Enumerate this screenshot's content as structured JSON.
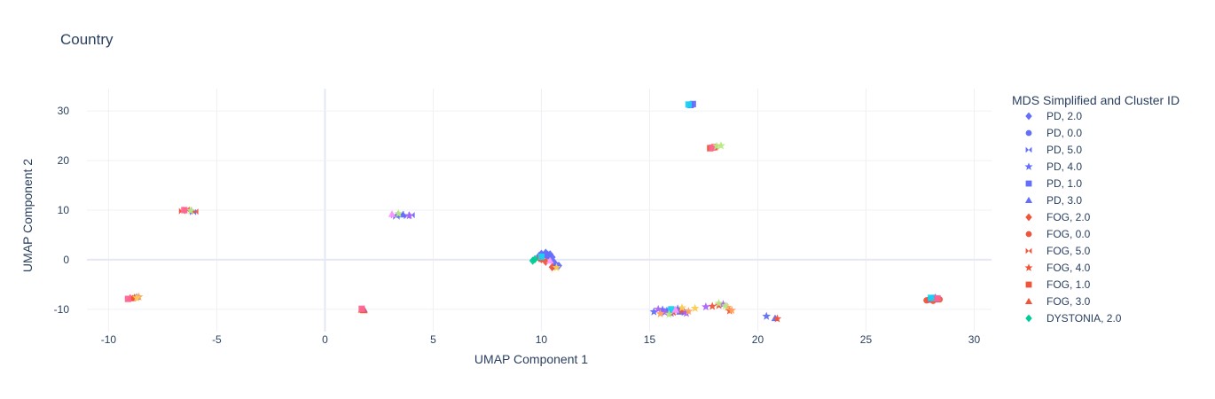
{
  "chart_data": {
    "type": "scatter",
    "title": "Country",
    "xlabel": "UMAP Component 1",
    "ylabel": "UMAP Component 2",
    "xlim": [
      -11,
      30.8
    ],
    "ylim": [
      -14.5,
      34.5
    ],
    "xticks": [
      -10,
      -5,
      0,
      5,
      10,
      15,
      20,
      25,
      30
    ],
    "yticks": [
      -10,
      0,
      10,
      20,
      30
    ],
    "grid": true,
    "legend_title": "MDS Simplified and Cluster ID",
    "legend_position": "right",
    "series": [
      {
        "name": "PD, 2.0",
        "color": "#636efa",
        "symbol": "diamond",
        "points": [
          [
            10.0,
            1.2
          ],
          [
            10.3,
            1.0
          ],
          [
            10.5,
            0.5
          ],
          [
            9.9,
            0.8
          ],
          [
            10.2,
            1.4
          ],
          [
            10.6,
            -0.6
          ],
          [
            10.8,
            -1.2
          ],
          [
            10.4,
            1.1
          ]
        ]
      },
      {
        "name": "PD, 0.0",
        "color": "#636efa",
        "symbol": "circle",
        "points": [
          [
            28.1,
            -7.7
          ],
          [
            28.2,
            -7.9
          ],
          [
            28.3,
            -8.0
          ],
          [
            27.9,
            -8.1
          ],
          [
            28.0,
            -7.8
          ],
          [
            10.1,
            1.0
          ],
          [
            10.3,
            0.7
          ]
        ]
      },
      {
        "name": "PD, 5.0",
        "color": "#636efa",
        "symbol": "bowtie",
        "points": [
          [
            3.2,
            9.0
          ],
          [
            3.5,
            9.2
          ],
          [
            3.8,
            8.8
          ],
          [
            4.0,
            9.0
          ],
          [
            3.3,
            8.7
          ],
          [
            -6.1,
            9.6
          ],
          [
            -6.3,
            10.0
          ]
        ]
      },
      {
        "name": "PD, 4.0",
        "color": "#636efa",
        "symbol": "star",
        "points": [
          [
            15.2,
            -10.5
          ],
          [
            15.6,
            -10.1
          ],
          [
            16.0,
            -10.8
          ],
          [
            16.3,
            -9.9
          ],
          [
            16.6,
            -10.6
          ],
          [
            20.4,
            -11.4
          ],
          [
            15.8,
            -10.3
          ]
        ]
      },
      {
        "name": "PD, 1.0",
        "color": "#636efa",
        "symbol": "square",
        "points": [
          [
            16.9,
            31.2
          ],
          [
            17.0,
            31.4
          ]
        ]
      },
      {
        "name": "PD, 3.0",
        "color": "#636efa",
        "symbol": "triangle-up",
        "points": [
          [
            1.8,
            -10.0
          ],
          [
            -8.7,
            -7.5
          ],
          [
            20.8,
            -11.8
          ],
          [
            28.2,
            -7.6
          ],
          [
            15.9,
            -10.2
          ],
          [
            16.4,
            -10.5
          ],
          [
            3.6,
            9.1
          ],
          [
            10.6,
            -1.4
          ],
          [
            10.2,
            0.9
          ]
        ]
      },
      {
        "name": "FOG, 2.0",
        "color": "#EF553B",
        "symbol": "diamond",
        "points": [
          [
            9.9,
            0.3
          ],
          [
            10.2,
            -0.4
          ],
          [
            10.5,
            -1.5
          ],
          [
            10.0,
            0.1
          ]
        ]
      },
      {
        "name": "FOG, 0.0",
        "color": "#EF553B",
        "symbol": "circle",
        "points": [
          [
            28.4,
            -8.0
          ],
          [
            27.8,
            -8.2
          ],
          [
            28.1,
            -8.3
          ]
        ]
      },
      {
        "name": "FOG, 5.0",
        "color": "#EF553B",
        "symbol": "bowtie",
        "points": [
          [
            -6.6,
            9.8
          ],
          [
            -6.4,
            10.1
          ],
          [
            -6.0,
            9.7
          ]
        ]
      },
      {
        "name": "FOG, 4.0",
        "color": "#EF553B",
        "symbol": "star",
        "points": [
          [
            16.1,
            -10.6
          ],
          [
            16.5,
            -10.3
          ],
          [
            17.9,
            -9.4
          ],
          [
            18.2,
            -9.2
          ],
          [
            18.7,
            -10.3
          ],
          [
            20.9,
            -11.9
          ]
        ]
      },
      {
        "name": "FOG, 1.0",
        "color": "#EF553B",
        "symbol": "square",
        "points": [
          [
            17.8,
            22.5
          ],
          [
            18.0,
            22.7
          ]
        ]
      },
      {
        "name": "FOG, 3.0",
        "color": "#EF553B",
        "symbol": "triangle-up",
        "points": [
          [
            1.7,
            -10.1
          ],
          [
            -9.0,
            -7.7
          ],
          [
            -8.9,
            -7.8
          ],
          [
            1.8,
            -10.2
          ],
          [
            -8.8,
            -7.6
          ]
        ]
      },
      {
        "name": "DYSTONIA, 2.0",
        "color": "#00cc96",
        "symbol": "diamond",
        "points": [
          [
            9.6,
            -0.2
          ],
          [
            9.7,
            0.1
          ]
        ]
      },
      {
        "name": "",
        "color": "#ab63fa",
        "symbol": "star",
        "points": [
          [
            15.4,
            -10.0
          ],
          [
            15.7,
            -10.6
          ],
          [
            16.2,
            -10.2
          ],
          [
            16.7,
            -10.8
          ],
          [
            3.9,
            8.9
          ],
          [
            17.6,
            -9.5
          ],
          [
            18.4,
            -9.0
          ]
        ]
      },
      {
        "name": "",
        "color": "#FFA15A",
        "symbol": "star",
        "points": [
          [
            16.8,
            -10.4
          ],
          [
            18.6,
            -9.6
          ],
          [
            18.8,
            -10.2
          ],
          [
            -8.6,
            -7.5
          ],
          [
            15.5,
            -10.9
          ]
        ]
      },
      {
        "name": "",
        "color": "#19d3f3",
        "symbol": "square",
        "points": [
          [
            16.8,
            31.3
          ],
          [
            28.0,
            -7.7
          ],
          [
            10.0,
            0.6
          ],
          [
            16.0,
            -10.0
          ]
        ]
      },
      {
        "name": "",
        "color": "#FF6692",
        "symbol": "square",
        "points": [
          [
            17.9,
            22.6
          ],
          [
            -6.5,
            10.0
          ],
          [
            1.7,
            -9.9
          ],
          [
            -9.1,
            -7.9
          ],
          [
            28.3,
            -7.8
          ]
        ]
      },
      {
        "name": "",
        "color": "#B6E880",
        "symbol": "star",
        "points": [
          [
            18.1,
            22.9
          ],
          [
            18.3,
            23.0
          ],
          [
            18.2,
            -8.8
          ],
          [
            18.5,
            -9.3
          ],
          [
            15.9,
            -11.0
          ],
          [
            3.4,
            9.3
          ],
          [
            -6.2,
            9.9
          ]
        ]
      },
      {
        "name": "",
        "color": "#FF97FF",
        "symbol": "triangle-up",
        "points": [
          [
            16.2,
            -10.1
          ],
          [
            10.4,
            -0.2
          ],
          [
            3.1,
            9.2
          ]
        ]
      },
      {
        "name": "",
        "color": "#FECB52",
        "symbol": "star",
        "points": [
          [
            17.1,
            -9.8
          ],
          [
            16.5,
            -9.7
          ],
          [
            -8.7,
            -7.7
          ],
          [
            10.7,
            -1.6
          ]
        ]
      }
    ]
  }
}
